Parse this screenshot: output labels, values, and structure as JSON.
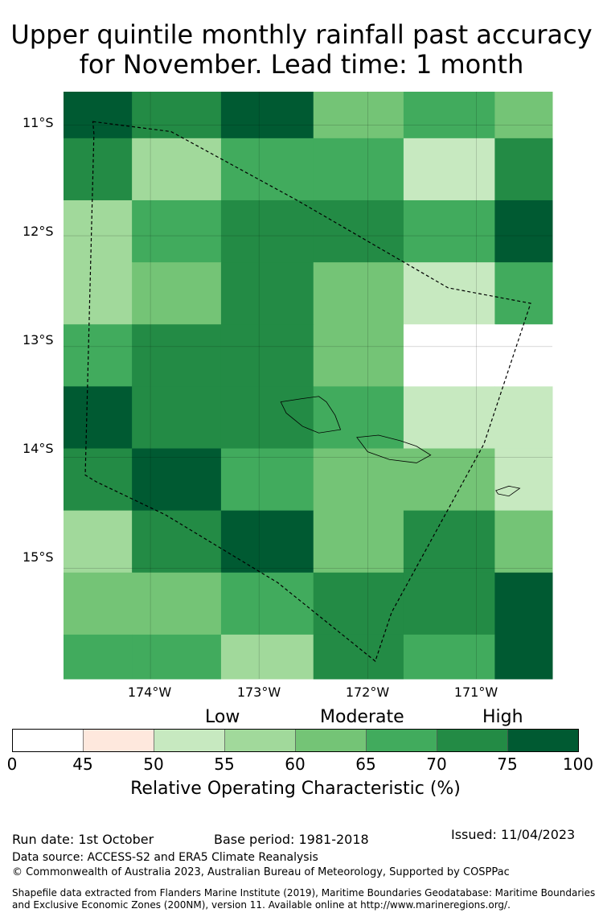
{
  "title_line1": "Upper quintile monthly rainfall past accuracy",
  "title_line2": "for November. Lead time: 1 month",
  "lat_labels": [
    "11°S",
    "12°S",
    "13°S",
    "14°S",
    "15°S"
  ],
  "lon_labels": [
    "174°W",
    "173°W",
    "172°W",
    "171°W"
  ],
  "legend": {
    "categories": [
      "Low",
      "Moderate",
      "High"
    ],
    "ticks": [
      "0",
      "45",
      "50",
      "55",
      "60",
      "65",
      "70",
      "75",
      "100"
    ],
    "colors": [
      "#ffffff",
      "#fee8dd",
      "#c7e9c0",
      "#a1d99b",
      "#74c476",
      "#41ab5d",
      "#238b45",
      "#005a32"
    ],
    "title": "Relative Operating Characteristic (%)"
  },
  "map_extent": {
    "lon_min": -174.8,
    "lon_max": -170.3,
    "lat_min": -16.0,
    "lat_max": -10.7
  },
  "grid": {
    "row_lat_bounds": [
      -10.7,
      -11.12,
      -11.68,
      -12.24,
      -12.8,
      -13.36,
      -13.92,
      -14.48,
      -15.04,
      -15.6,
      -16.0
    ],
    "col_lon_bounds": [
      -174.8,
      -174.17,
      -173.35,
      -172.5,
      -171.67,
      -170.83,
      -170.3
    ],
    "classes": [
      [
        7,
        6,
        7,
        4,
        5,
        4
      ],
      [
        6,
        3,
        5,
        5,
        2,
        6
      ],
      [
        3,
        5,
        6,
        6,
        5,
        7
      ],
      [
        3,
        4,
        6,
        4,
        2,
        5
      ],
      [
        5,
        6,
        6,
        4,
        0,
        0
      ],
      [
        7,
        6,
        6,
        5,
        2,
        2
      ],
      [
        6,
        7,
        5,
        4,
        4,
        2
      ],
      [
        3,
        6,
        7,
        4,
        6,
        4
      ],
      [
        4,
        4,
        5,
        6,
        6,
        7
      ],
      [
        5,
        5,
        3,
        6,
        5,
        7
      ]
    ]
  },
  "eez_boundary": [
    [
      -174.53,
      -10.97
    ],
    [
      -173.81,
      -11.06
    ],
    [
      -172.65,
      -11.68
    ],
    [
      -171.26,
      -12.47
    ],
    [
      -170.5,
      -12.61
    ],
    [
      -170.93,
      -13.88
    ],
    [
      -171.78,
      -15.4
    ],
    [
      -171.93,
      -15.84
    ],
    [
      -172.83,
      -15.13
    ],
    [
      -173.86,
      -14.52
    ],
    [
      -174.5,
      -14.22
    ],
    [
      -174.6,
      -14.16
    ],
    [
      -174.52,
      -11.08
    ]
  ],
  "islands": [
    [
      [
        -172.8,
        -13.5
      ],
      [
        -172.6,
        -13.47
      ],
      [
        -172.45,
        -13.45
      ],
      [
        -172.38,
        -13.5
      ],
      [
        -172.3,
        -13.62
      ],
      [
        -172.25,
        -13.75
      ],
      [
        -172.45,
        -13.78
      ],
      [
        -172.6,
        -13.72
      ],
      [
        -172.75,
        -13.6
      ]
    ],
    [
      [
        -172.1,
        -13.82
      ],
      [
        -171.9,
        -13.8
      ],
      [
        -171.7,
        -13.85
      ],
      [
        -171.55,
        -13.9
      ],
      [
        -171.42,
        -13.98
      ],
      [
        -171.55,
        -14.05
      ],
      [
        -171.8,
        -14.02
      ],
      [
        -172.0,
        -13.95
      ]
    ],
    [
      [
        -170.82,
        -14.3
      ],
      [
        -170.7,
        -14.26
      ],
      [
        -170.6,
        -14.28
      ],
      [
        -170.7,
        -14.35
      ],
      [
        -170.8,
        -14.33
      ]
    ]
  ],
  "footer": {
    "run_date": "Run date: 1st October",
    "base_period": "Base period: 1981-2018",
    "issued": "Issued: 11/04/2023",
    "data_source": "Data source: ACCESS-S2 and ERA5 Climate Reanalysis",
    "copyright": "© Commonwealth of Australia 2023, Australian Bureau of Meteorology, Supported by COSPPac",
    "shapefile_line1": "Shapefile data extracted from Flanders Marine Institute (2019), Maritime Boundaries Geodatabase: Maritime Boundaries",
    "shapefile_line2": "and Exclusive Economic Zones (200NM), version 11. Available online at http://www.marineregions.org/."
  }
}
